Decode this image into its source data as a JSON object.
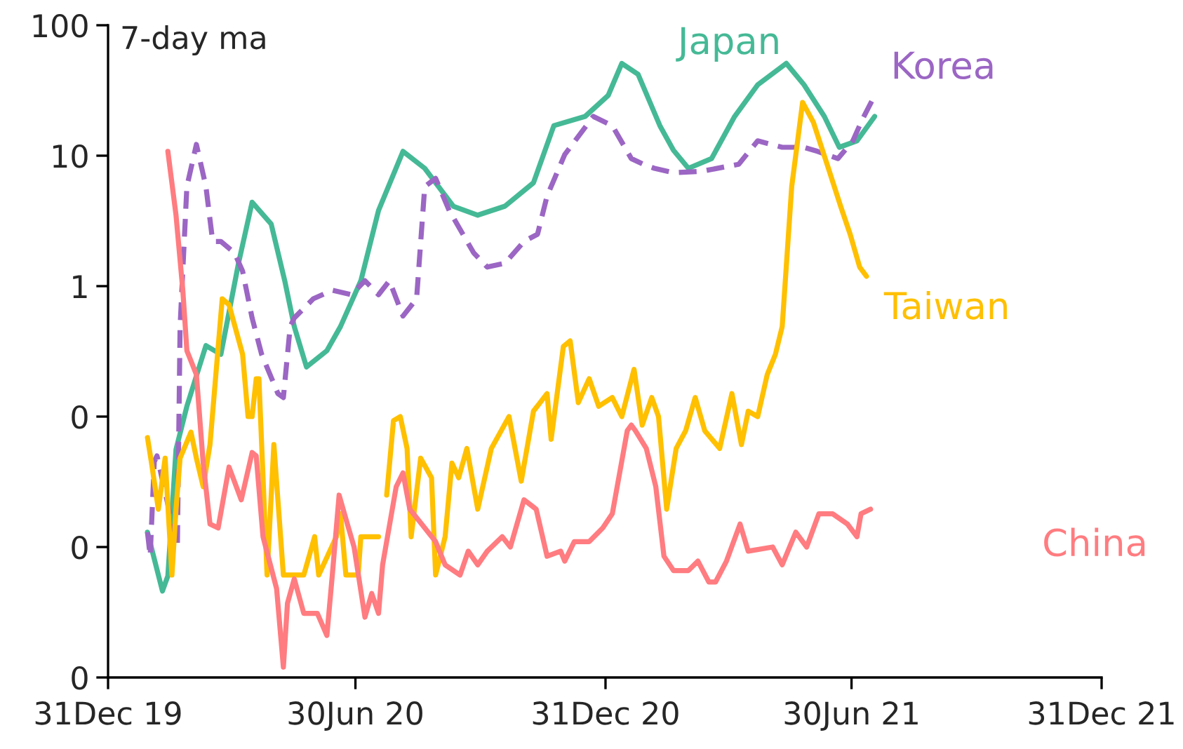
{
  "chart_data": {
    "type": "line",
    "annotations": [
      "7-day ma"
    ],
    "log": "y",
    "xlim": [
      "2019-12-31",
      "2021-12-31"
    ],
    "xticks": [
      {
        "value": "2019-12-31",
        "label": "31Dec 19"
      },
      {
        "value": "2020-06-30",
        "label": "30Jun 20"
      },
      {
        "value": "2020-12-31",
        "label": "31Dec 20"
      },
      {
        "value": "2021-06-30",
        "label": "30Jun 21"
      },
      {
        "value": "2021-12-31",
        "label": "31Dec 21"
      }
    ],
    "ylim": [
      0.001,
      100
    ],
    "yticks": [
      {
        "value": 0.001,
        "label": "0"
      },
      {
        "value": 0.01,
        "label": "0"
      },
      {
        "value": 0.1,
        "label": "0"
      },
      1,
      10,
      100
    ],
    "grid": false,
    "legend": false,
    "marker": "none",
    "series": [
      {
        "name": "Japan",
        "color": "#45b995",
        "line_style": "solid",
        "x": [
          "2020-01-29",
          "2020-02-09",
          "2020-02-13",
          "2020-02-19",
          "2020-02-27",
          "2020-03-12",
          "2020-03-23",
          "2020-04-05",
          "2020-04-15",
          "2020-04-29",
          "2020-05-09",
          "2020-05-16",
          "2020-05-25",
          "2020-06-09",
          "2020-06-19",
          "2020-07-04",
          "2020-07-17",
          "2020-08-04",
          "2020-08-20",
          "2020-09-10",
          "2020-09-28",
          "2020-10-18",
          "2020-11-08",
          "2020-11-23",
          "2020-12-16",
          "2021-01-02",
          "2021-01-12",
          "2021-01-24",
          "2021-02-09",
          "2021-02-19",
          "2021-03-02",
          "2021-03-19",
          "2021-04-05",
          "2021-04-22",
          "2021-05-13",
          "2021-05-26",
          "2021-06-10",
          "2021-06-21",
          "2021-07-04",
          "2021-07-17"
        ],
        "values": [
          0.013,
          0.0046,
          0.006,
          0.056,
          0.12,
          0.35,
          0.3,
          1.5,
          4.4,
          3.0,
          1.1,
          0.49,
          0.24,
          0.32,
          0.49,
          1.1,
          3.8,
          10.8,
          8.0,
          4.1,
          3.5,
          4.1,
          6.2,
          17,
          20,
          29,
          51,
          42,
          17,
          11,
          8.0,
          9.5,
          20,
          35,
          51,
          35,
          20,
          11.6,
          13,
          20
        ]
      },
      {
        "name": "Korea",
        "color": "#9b66c4",
        "line_style": "dashed",
        "x": [
          "2020-01-29",
          "2020-01-31",
          "2020-02-03",
          "2020-02-05",
          "2020-02-20",
          "2020-02-22",
          "2020-02-27",
          "2020-03-05",
          "2020-03-12",
          "2020-03-17",
          "2020-03-23",
          "2020-04-02",
          "2020-04-08",
          "2020-04-15",
          "2020-04-22",
          "2020-05-04",
          "2020-05-08",
          "2020-05-13",
          "2020-05-16",
          "2020-05-30",
          "2020-06-13",
          "2020-06-27",
          "2020-07-07",
          "2020-07-17",
          "2020-07-25",
          "2020-08-04",
          "2020-08-14",
          "2020-08-20",
          "2020-08-28",
          "2020-09-07",
          "2020-09-25",
          "2020-10-05",
          "2020-10-18",
          "2020-11-01",
          "2020-11-11",
          "2020-11-18",
          "2020-12-01",
          "2020-12-22",
          "2021-01-05",
          "2021-01-19",
          "2021-01-30",
          "2021-02-05",
          "2021-02-19",
          "2021-03-12",
          "2021-04-08",
          "2021-04-22",
          "2021-05-10",
          "2021-05-26",
          "2021-06-05",
          "2021-06-20",
          "2021-07-01",
          "2021-07-08",
          "2021-07-16"
        ],
        "values": [
          0.013,
          0.0085,
          0.045,
          0.05,
          0.01,
          0.49,
          5.8,
          12.2,
          5.8,
          2.2,
          2.2,
          1.8,
          1.3,
          0.57,
          0.3,
          0.15,
          0.14,
          0.49,
          0.57,
          0.8,
          0.93,
          0.86,
          1.1,
          0.86,
          1.1,
          0.59,
          0.8,
          5.8,
          6.7,
          3.8,
          1.8,
          1.4,
          1.5,
          2.2,
          2.5,
          4.9,
          10.2,
          20,
          17,
          9.5,
          8.4,
          8.0,
          7.4,
          7.6,
          8.6,
          13,
          11.6,
          11.6,
          10.8,
          9.5,
          13,
          19,
          27.6
        ]
      },
      {
        "name": "Taiwan",
        "color": "#ffc000",
        "line_style": "solid",
        "x": [
          "2020-01-29",
          "2020-02-01",
          "2020-02-06",
          "2020-02-11",
          "2020-02-16",
          "2020-02-19",
          "2020-02-22",
          "2020-03-01",
          "2020-03-05",
          "2020-03-10",
          "2020-03-15",
          "2020-03-24",
          "2020-03-29",
          "2020-04-08",
          "2020-04-12",
          "2020-04-15",
          "2020-04-18",
          "2020-04-20",
          "2020-04-26",
          "2020-05-01",
          "2020-05-08",
          "2020-05-13",
          "2020-05-23",
          "2020-05-31",
          "2020-06-03",
          "2020-06-16",
          "2020-06-19",
          "2020-06-23",
          "2020-07-02",
          "2020-07-04",
          "2020-07-10",
          "2020-07-17",
          null,
          "2020-07-23",
          "2020-07-28",
          "2020-08-02",
          "2020-08-07",
          "2020-08-10",
          "2020-08-17",
          "2020-08-25",
          "2020-08-28",
          "2020-09-04",
          "2020-09-09",
          "2020-09-14",
          "2020-09-20",
          "2020-09-28",
          "2020-10-08",
          "2020-10-21",
          "2020-10-30",
          "2020-11-08",
          "2020-11-18",
          "2020-11-21",
          "2020-11-30",
          "2020-12-05",
          "2020-12-11",
          "2020-12-19",
          "2020-12-26",
          "2021-01-05",
          "2021-01-12",
          "2021-01-21",
          "2021-01-27",
          "2021-02-03",
          "2021-02-08",
          "2021-02-14",
          "2021-02-21",
          "2021-02-28",
          "2021-03-07",
          "2021-03-14",
          "2021-03-25",
          "2021-04-03",
          "2021-04-10",
          "2021-04-15",
          "2021-04-22",
          "2021-04-29",
          "2021-05-05",
          "2021-05-10",
          "2021-05-17",
          "2021-05-25",
          "2021-06-02",
          "2021-06-12",
          "2021-06-22",
          "2021-06-29",
          "2021-07-06",
          "2021-07-11"
        ],
        "values": [
          0.069,
          0.044,
          0.0195,
          0.048,
          0.0061,
          0.0195,
          0.048,
          0.076,
          0.048,
          0.029,
          0.061,
          0.8,
          0.72,
          0.3,
          0.1,
          0.1,
          0.195,
          0.195,
          0.0061,
          0.061,
          0.0061,
          0.0061,
          0.0061,
          0.012,
          0.0061,
          0.012,
          0.018,
          0.0061,
          0.0061,
          0.012,
          0.012,
          0.012,
          null,
          0.025,
          0.093,
          0.1,
          0.057,
          0.012,
          0.048,
          0.034,
          0.0061,
          0.012,
          0.044,
          0.034,
          0.057,
          0.0195,
          0.057,
          0.1,
          0.032,
          0.11,
          0.15,
          0.067,
          0.345,
          0.38,
          0.128,
          0.195,
          0.12,
          0.14,
          0.1,
          0.23,
          0.086,
          0.14,
          0.1,
          0.0195,
          0.057,
          0.078,
          0.14,
          0.078,
          0.057,
          0.15,
          0.061,
          0.11,
          0.1,
          0.21,
          0.3,
          0.49,
          5.8,
          25.6,
          18,
          8.6,
          4.1,
          2.5,
          1.4,
          1.19
        ]
      },
      {
        "name": "China",
        "color": "#ff7c80",
        "line_style": "solid",
        "x": [
          "2020-02-13",
          "2020-02-19",
          "2020-02-24",
          "2020-02-27",
          "2020-03-05",
          "2020-03-10",
          "2020-03-15",
          "2020-03-21",
          "2020-03-29",
          "2020-04-07",
          "2020-04-15",
          "2020-04-18",
          "2020-04-23",
          "2020-05-03",
          "2020-05-08",
          "2020-05-11",
          "2020-05-16",
          "2020-05-23",
          "2020-06-02",
          "2020-06-09",
          "2020-06-13",
          "2020-06-18",
          "2020-06-23",
          "2020-06-29",
          "2020-07-07",
          "2020-07-12",
          "2020-07-17",
          "2020-07-20",
          "2020-07-30",
          "2020-08-04",
          "2020-08-09",
          "2020-08-20",
          "2020-08-28",
          "2020-09-04",
          "2020-09-15",
          "2020-09-21",
          "2020-09-28",
          "2020-10-05",
          "2020-10-16",
          "2020-10-22",
          "2020-11-01",
          "2020-11-10",
          "2020-11-18",
          "2020-11-28",
          "2020-12-01",
          "2020-12-08",
          "2020-12-19",
          "2020-12-29",
          "2021-01-05",
          "2021-01-16",
          "2021-01-19",
          "2021-01-22",
          "2021-01-30",
          "2021-02-06",
          "2021-02-12",
          "2021-02-19",
          "2021-03-02",
          "2021-03-09",
          "2021-03-17",
          "2021-03-22",
          "2021-03-30",
          "2021-04-09",
          "2021-04-15",
          "2021-05-03",
          "2021-05-10",
          "2021-05-20",
          "2021-05-28",
          "2021-06-06",
          "2021-06-16",
          "2021-06-27",
          "2021-07-04",
          "2021-07-07",
          "2021-07-14"
        ],
        "values": [
          10.8,
          3.5,
          0.93,
          0.32,
          0.21,
          0.044,
          0.015,
          0.014,
          0.041,
          0.023,
          0.053,
          0.05,
          0.012,
          0.0048,
          0.0012,
          0.0037,
          0.0057,
          0.0031,
          0.0031,
          0.0021,
          0.0061,
          0.025,
          0.0164,
          0.01,
          0.0029,
          0.0044,
          0.0031,
          0.0073,
          0.029,
          0.037,
          0.0195,
          0.014,
          0.011,
          0.0073,
          0.0061,
          0.0093,
          0.0073,
          0.0093,
          0.012,
          0.01,
          0.023,
          0.0195,
          0.0085,
          0.0093,
          0.0078,
          0.011,
          0.011,
          0.014,
          0.018,
          0.078,
          0.086,
          0.078,
          0.057,
          0.029,
          0.0085,
          0.0066,
          0.0066,
          0.0078,
          0.0054,
          0.0054,
          0.0078,
          0.015,
          0.0093,
          0.01,
          0.0073,
          0.013,
          0.01,
          0.018,
          0.018,
          0.015,
          0.012,
          0.018,
          0.0195
        ]
      }
    ]
  }
}
